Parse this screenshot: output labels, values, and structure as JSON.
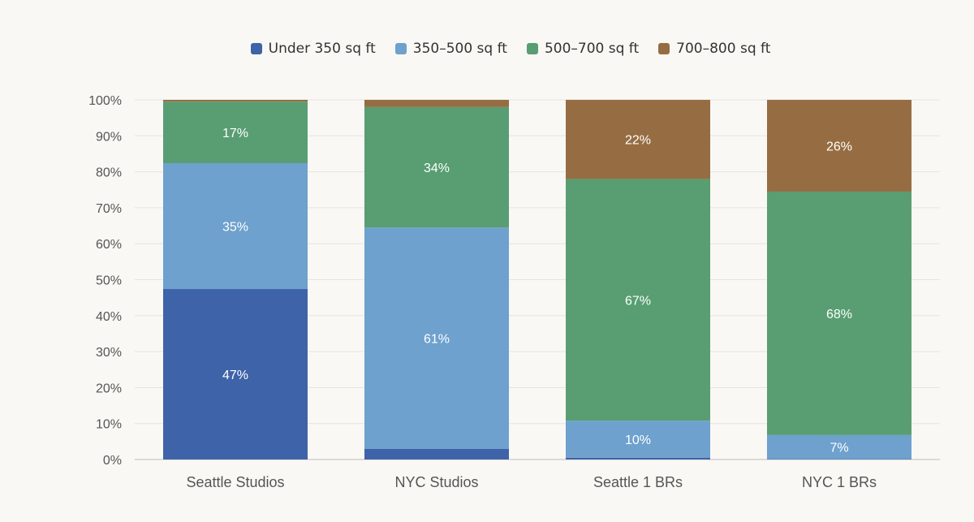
{
  "chart_data": {
    "type": "bar",
    "stacked": true,
    "categories": [
      "Seattle Studios",
      "NYC Studios",
      "Seattle 1 BRs",
      "NYC 1 BRs"
    ],
    "series": [
      {
        "name": "Under 350 sq ft",
        "color": "#3e63a8",
        "values": [
          47.4,
          3,
          0.5,
          0.1
        ]
      },
      {
        "name": "350–500 sq ft",
        "color": "#6ea1cd",
        "values": [
          35,
          61.5,
          10.3,
          6.7
        ]
      },
      {
        "name": "500–700 sq ft",
        "color": "#589e72",
        "values": [
          17.1,
          33.5,
          67.2,
          67.7
        ]
      },
      {
        "name": "700–800 sq ft",
        "color": "#966d42",
        "values": [
          0.5,
          2,
          22,
          25.5
        ]
      }
    ],
    "segment_labels": [
      [
        "47%",
        "35%",
        "17%",
        ""
      ],
      [
        "",
        "61%",
        "34%",
        ""
      ],
      [
        "",
        "10%",
        "67%",
        "22%"
      ],
      [
        "",
        "7%",
        "68%",
        "26%"
      ]
    ],
    "y_ticks": [
      "0%",
      "10%",
      "20%",
      "30%",
      "40%",
      "50%",
      "60%",
      "70%",
      "80%",
      "90%",
      "100%"
    ],
    "ylim": [
      0,
      100
    ],
    "legend_position": "top-center",
    "grid": true,
    "title": "",
    "xlabel": "",
    "ylabel": ""
  }
}
